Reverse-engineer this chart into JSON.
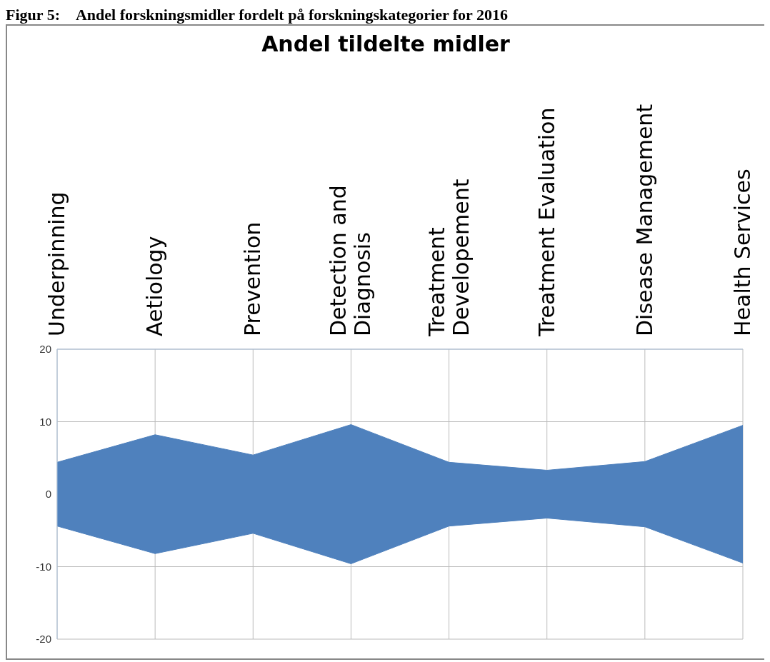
{
  "chart_data": {
    "type": "area",
    "title": "Andel tildelte midler",
    "annotations": [
      "Figur 5:    Andel forskningsmidler fordelt på forskningskategorier for 2016"
    ],
    "categories": [
      "Underpinning",
      "Aetiology",
      "Prevention",
      "Detection and Diagnosis",
      "Treatment Developement",
      "Treatment Evaluation",
      "Disease Management",
      "Health Services"
    ],
    "series": [
      {
        "color": "#4f81bd",
        "values": [
          4.4,
          8.2,
          5.4,
          9.6,
          4.4,
          3.3,
          4.5,
          9.5
        ]
      },
      {
        "color": "#4f81bd",
        "values": [
          -4.4,
          -8.2,
          -5.4,
          -9.6,
          -4.4,
          -3.3,
          -4.5,
          -9.5
        ]
      }
    ],
    "ylim": [
      -20,
      20
    ],
    "yticks": [
      -20,
      -10,
      0,
      10,
      20
    ],
    "grid": true
  }
}
